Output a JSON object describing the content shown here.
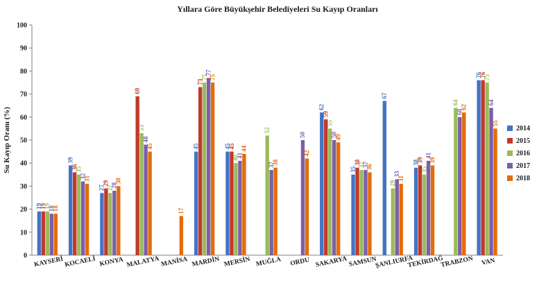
{
  "chart_data": {
    "type": "bar",
    "title": "Yıllara Göre Büyükşehir Belediyeleri Su Kayıp Oranları",
    "ylabel": "Su Kayıp Oranı (%)",
    "xlabel": "",
    "ylim": [
      0,
      100
    ],
    "yticks": [
      0,
      10,
      20,
      30,
      40,
      50,
      60,
      70,
      80,
      90,
      100
    ],
    "categories": [
      "KAYSERİ",
      "KOCAELİ",
      "KONYA",
      "MALATYA",
      "MANİSA",
      "MARDİN",
      "MERSİN",
      "MUĞLA",
      "ORDU",
      "SAKARYA",
      "SAMSUN",
      "ŞANLIURFA",
      "TEKİRDAĞ",
      "TRABZON",
      "VAN"
    ],
    "series": [
      {
        "name": "2014",
        "color": "#4472c4",
        "values": [
          19,
          39,
          27,
          null,
          null,
          45,
          45,
          null,
          null,
          62,
          35,
          67,
          38,
          null,
          76
        ]
      },
      {
        "name": "2015",
        "color": "#c0392b",
        "values": [
          19,
          36,
          29,
          69,
          null,
          73,
          45,
          null,
          null,
          59,
          38,
          null,
          39,
          null,
          76
        ]
      },
      {
        "name": "2016",
        "color": "#9bbb59",
        "values": [
          19,
          35,
          27,
          53,
          null,
          75,
          40,
          52,
          null,
          55,
          37,
          29,
          35,
          64,
          75
        ]
      },
      {
        "name": "2017",
        "color": "#7b5fa8",
        "values": [
          18,
          32,
          28,
          48,
          null,
          77,
          41,
          37,
          50,
          50,
          37,
          33,
          41,
          60,
          64
        ]
      },
      {
        "name": "2018",
        "color": "#e46c0a",
        "values": [
          18,
          31,
          30,
          45,
          17,
          75,
          44,
          38,
          42,
          49,
          36,
          31,
          39,
          62,
          55
        ]
      }
    ],
    "data_labels": [
      [
        "19",
        "39",
        "27",
        null,
        null,
        "45",
        "45",
        null,
        null,
        "62",
        "35",
        "67",
        "38",
        null,
        "76"
      ],
      [
        "19",
        "36",
        "29",
        "69",
        null,
        "73",
        "45",
        null,
        null,
        "59",
        "38",
        null,
        "39",
        null,
        "76"
      ],
      [
        "19",
        "35",
        "27",
        "53",
        null,
        "75",
        "40",
        "52",
        null,
        "55",
        "37",
        "29",
        "35",
        "64",
        "75"
      ],
      [
        "18",
        "32",
        "28",
        "48",
        null,
        "77",
        "41",
        "37",
        "50",
        "50",
        "37",
        "33",
        "41",
        "60",
        "64"
      ],
      [
        "18",
        "31",
        "30",
        "45",
        "17",
        "75",
        "44",
        "38",
        "42",
        "49",
        "36",
        "31",
        "39",
        "62",
        "55"
      ]
    ],
    "legend_position": "right",
    "grid": false
  }
}
